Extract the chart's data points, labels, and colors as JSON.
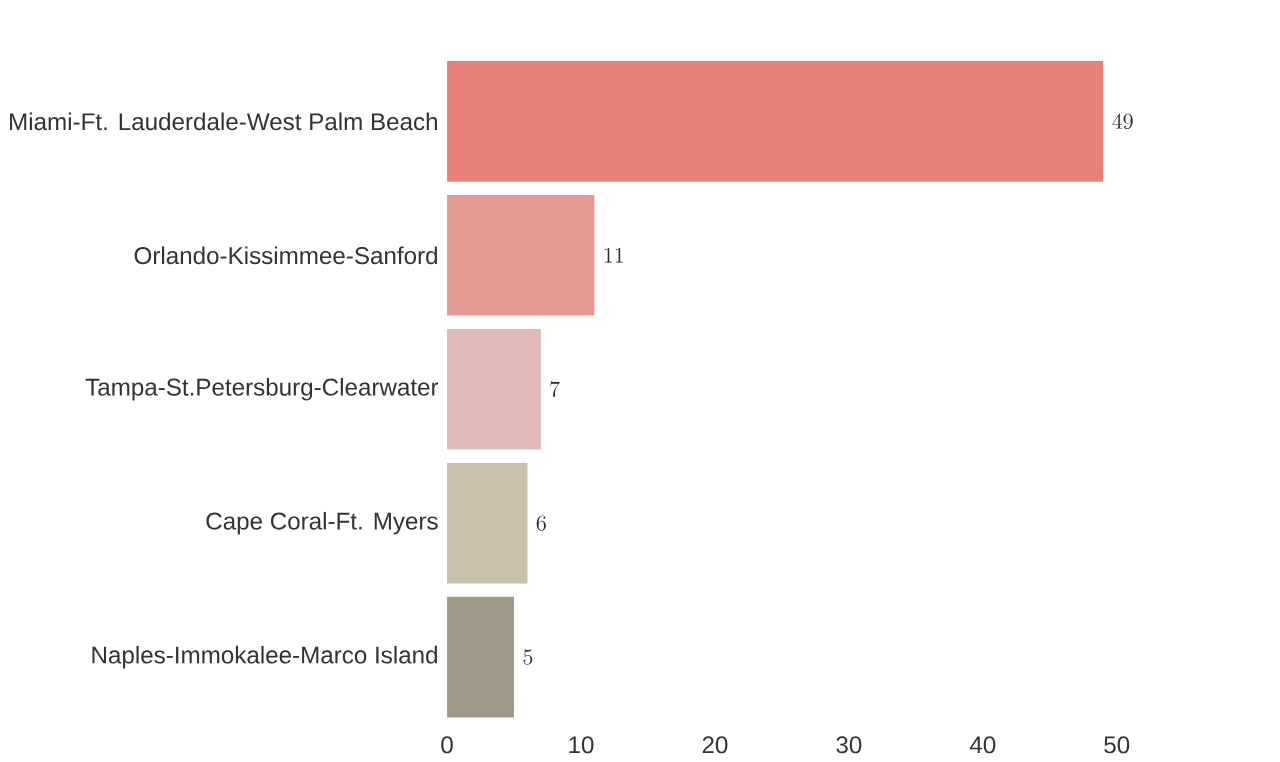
{
  "chart_data": {
    "type": "bar",
    "orientation": "horizontal",
    "categories": [
      "Miami-Ft. Lauderdale-West Palm Beach",
      "Orlando-Kissimmee-Sanford",
      "Tampa-St.Petersburg-Clearwater",
      "Cape Coral-Ft. Myers",
      "Naples-Immokalee-Marco Island"
    ],
    "values": [
      49,
      11,
      7,
      6,
      5
    ],
    "colors": [
      "#e8807a",
      "#e39a92",
      "#dfbab6",
      "#c8c0ac",
      "#a09886"
    ],
    "xlim": [
      0,
      50
    ],
    "xticks": [
      0,
      10,
      20,
      30,
      40,
      50
    ],
    "data_labels": true
  }
}
